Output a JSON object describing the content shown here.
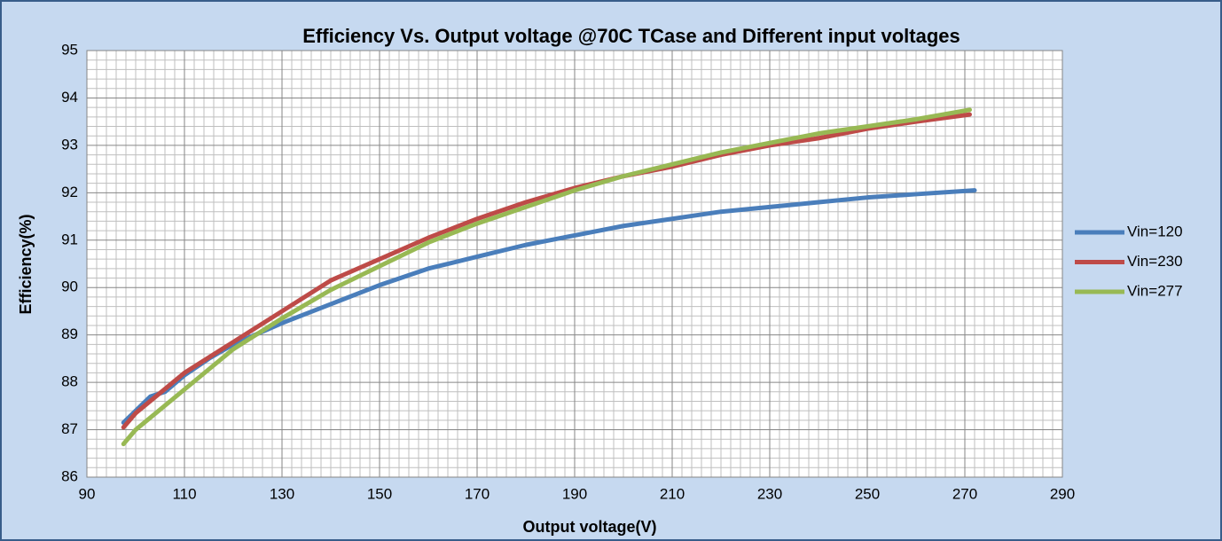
{
  "chart_data": {
    "type": "line",
    "title": "Efficiency Vs. Output voltage @70C TCase and Different input voltages",
    "xlabel": "Output voltage(V)",
    "ylabel": "Efficiency(%)",
    "xlim": [
      90,
      290
    ],
    "xticks": [
      90,
      110,
      130,
      150,
      170,
      190,
      210,
      230,
      250,
      270,
      290
    ],
    "ylim": [
      86,
      95
    ],
    "yticks": [
      86,
      87,
      88,
      89,
      90,
      91,
      92,
      93,
      94,
      95
    ],
    "grid": true,
    "minor_grid": true,
    "legend": "right",
    "series": [
      {
        "name": "Vin=120",
        "color": "#4a7ebb",
        "x": [
          97.5,
          103,
          106,
          110,
          115,
          120,
          130,
          140,
          150,
          160,
          170,
          180,
          190,
          200,
          210,
          220,
          230,
          240,
          250,
          260,
          272
        ],
        "values": [
          87.15,
          87.7,
          87.8,
          88.15,
          88.5,
          88.8,
          89.25,
          89.65,
          90.05,
          90.4,
          90.65,
          90.9,
          91.1,
          91.3,
          91.45,
          91.6,
          91.7,
          91.8,
          91.9,
          91.97,
          92.05
        ]
      },
      {
        "name": "Vin=230",
        "color": "#be4b48",
        "x": [
          97.5,
          100,
          110,
          120,
          130,
          140,
          150,
          160,
          170,
          180,
          190,
          200,
          210,
          220,
          230,
          240,
          250,
          260,
          271
        ],
        "values": [
          87.05,
          87.35,
          88.2,
          88.85,
          89.5,
          90.15,
          90.6,
          91.05,
          91.45,
          91.8,
          92.1,
          92.35,
          92.55,
          92.8,
          93.0,
          93.15,
          93.35,
          93.5,
          93.65
        ]
      },
      {
        "name": "Vin=277",
        "color": "#98b954",
        "x": [
          97.5,
          100,
          110,
          120,
          130,
          140,
          150,
          160,
          170,
          180,
          190,
          200,
          210,
          220,
          230,
          240,
          250,
          260,
          271
        ],
        "values": [
          86.7,
          87.0,
          87.85,
          88.7,
          89.35,
          89.95,
          90.45,
          90.95,
          91.35,
          91.7,
          92.05,
          92.35,
          92.6,
          92.85,
          93.05,
          93.25,
          93.4,
          93.55,
          93.75
        ]
      }
    ]
  }
}
